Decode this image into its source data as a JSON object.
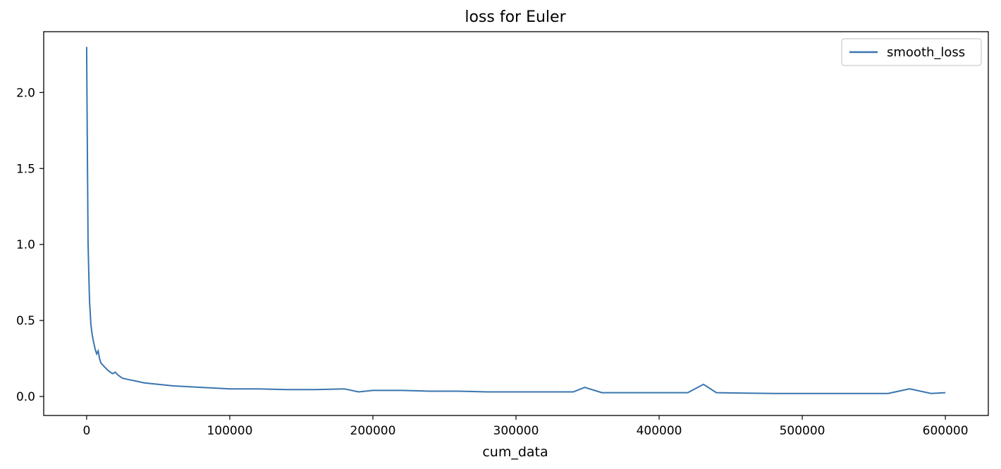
{
  "chart_data": {
    "type": "line",
    "title": "loss for Euler",
    "xlabel": "cum_data",
    "ylabel": "",
    "xlim": [
      -30000,
      630000
    ],
    "ylim": [
      -0.125,
      2.4
    ],
    "xticks": [
      0,
      100000,
      200000,
      300000,
      400000,
      500000,
      600000
    ],
    "xtick_labels": [
      "0",
      "100000",
      "200000",
      "300000",
      "400000",
      "500000",
      "600000"
    ],
    "yticks": [
      0.0,
      0.5,
      1.0,
      1.5,
      2.0
    ],
    "ytick_labels": [
      "0.0",
      "0.5",
      "1.0",
      "1.5",
      "2.0"
    ],
    "grid": false,
    "legend": {
      "position": "top-right",
      "entries": [
        "smooth_loss"
      ]
    },
    "series": [
      {
        "name": "smooth_loss",
        "color": "#3a75b0",
        "points": [
          [
            0,
            2.3
          ],
          [
            300,
            1.9
          ],
          [
            700,
            1.4
          ],
          [
            1000,
            1.02
          ],
          [
            1500,
            0.8
          ],
          [
            2000,
            0.63
          ],
          [
            2500,
            0.55
          ],
          [
            3000,
            0.47
          ],
          [
            4000,
            0.4
          ],
          [
            5000,
            0.35
          ],
          [
            6000,
            0.31
          ],
          [
            7000,
            0.28
          ],
          [
            8000,
            0.3
          ],
          [
            9000,
            0.25
          ],
          [
            10000,
            0.22
          ],
          [
            12000,
            0.2
          ],
          [
            15000,
            0.17
          ],
          [
            18000,
            0.15
          ],
          [
            20000,
            0.16
          ],
          [
            22000,
            0.14
          ],
          [
            25000,
            0.12
          ],
          [
            30000,
            0.11
          ],
          [
            35000,
            0.1
          ],
          [
            40000,
            0.09
          ],
          [
            45000,
            0.085
          ],
          [
            50000,
            0.08
          ],
          [
            60000,
            0.07
          ],
          [
            70000,
            0.065
          ],
          [
            80000,
            0.06
          ],
          [
            90000,
            0.055
          ],
          [
            100000,
            0.05
          ],
          [
            120000,
            0.05
          ],
          [
            140000,
            0.045
          ],
          [
            160000,
            0.045
          ],
          [
            180000,
            0.05
          ],
          [
            190000,
            0.03
          ],
          [
            200000,
            0.04
          ],
          [
            220000,
            0.04
          ],
          [
            240000,
            0.035
          ],
          [
            260000,
            0.035
          ],
          [
            280000,
            0.03
          ],
          [
            300000,
            0.03
          ],
          [
            320000,
            0.03
          ],
          [
            340000,
            0.03
          ],
          [
            348000,
            0.06
          ],
          [
            360000,
            0.025
          ],
          [
            380000,
            0.025
          ],
          [
            400000,
            0.025
          ],
          [
            420000,
            0.025
          ],
          [
            431000,
            0.08
          ],
          [
            440000,
            0.025
          ],
          [
            460000,
            0.022
          ],
          [
            480000,
            0.02
          ],
          [
            500000,
            0.02
          ],
          [
            520000,
            0.02
          ],
          [
            540000,
            0.02
          ],
          [
            560000,
            0.02
          ],
          [
            575000,
            0.05
          ],
          [
            590000,
            0.02
          ],
          [
            600000,
            0.025
          ]
        ]
      }
    ]
  }
}
